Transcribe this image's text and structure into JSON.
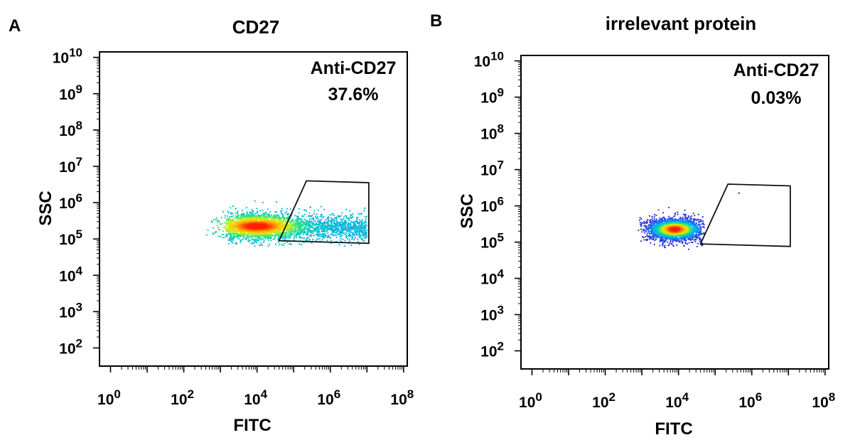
{
  "panels": [
    {
      "letter": "A",
      "title": "CD27",
      "gate_label": "Anti-CD27",
      "gate_percent": "37.6%"
    },
    {
      "letter": "B",
      "title": "irrelevant protein",
      "gate_label": "Anti-CD27",
      "gate_percent": "0.03%"
    }
  ],
  "chart_data": [
    {
      "type": "scatter",
      "title": "CD27",
      "xlabel": "FITC",
      "ylabel": "SSC",
      "x_scale": "log10",
      "y_scale": "log10",
      "x_ticks": [
        "10^0",
        "10^2",
        "10^4",
        "10^6",
        "10^8"
      ],
      "y_ticks": [
        "10^2",
        "10^3",
        "10^4",
        "10^5",
        "10^6",
        "10^7",
        "10^8",
        "10^9",
        "10^10"
      ],
      "xlim_log10": [
        -0.3,
        8.1
      ],
      "ylim_log10": [
        1.5,
        10.15
      ],
      "density_colormap": [
        "#2b2bd8",
        "#00a6ff",
        "#14e08c",
        "#d8f000",
        "#ffb000",
        "#ff2000"
      ],
      "population": {
        "core_log10_fitc": 4.0,
        "core_log10_ssc": 5.35,
        "log10_fitc_range": [
          2.6,
          7.0
        ],
        "log10_ssc_range": [
          4.9,
          5.85
        ],
        "shape": "elongated streak toward higher FITC"
      },
      "gate": {
        "name": "Anti-CD27",
        "percent": 37.6,
        "polygon_log10": [
          [
            4.6,
            4.95
          ],
          [
            5.35,
            6.6
          ],
          [
            7.05,
            6.55
          ],
          [
            7.05,
            4.88
          ]
        ]
      },
      "grid": false,
      "legend": "none"
    },
    {
      "type": "scatter",
      "title": "irrelevant protein",
      "xlabel": "FITC",
      "ylabel": "SSC",
      "x_scale": "log10",
      "y_scale": "log10",
      "x_ticks": [
        "10^0",
        "10^2",
        "10^4",
        "10^6",
        "10^8"
      ],
      "y_ticks": [
        "10^2",
        "10^3",
        "10^4",
        "10^5",
        "10^6",
        "10^7",
        "10^8",
        "10^9",
        "10^10"
      ],
      "xlim_log10": [
        -0.3,
        8.1
      ],
      "ylim_log10": [
        1.5,
        10.15
      ],
      "density_colormap": [
        "#2b2bd8",
        "#00a6ff",
        "#14e08c",
        "#d8f000",
        "#ffb000",
        "#ff2000"
      ],
      "population": {
        "core_log10_fitc": 3.9,
        "core_log10_ssc": 5.35,
        "log10_fitc_range": [
          2.9,
          4.7
        ],
        "log10_ssc_range": [
          4.9,
          5.9
        ],
        "shape": "compact oval cluster"
      },
      "gate": {
        "name": "Anti-CD27",
        "percent": 0.03,
        "polygon_log10": [
          [
            4.6,
            4.95
          ],
          [
            5.35,
            6.6
          ],
          [
            7.05,
            6.55
          ],
          [
            7.05,
            4.88
          ]
        ]
      },
      "grid": false,
      "legend": "none"
    }
  ]
}
